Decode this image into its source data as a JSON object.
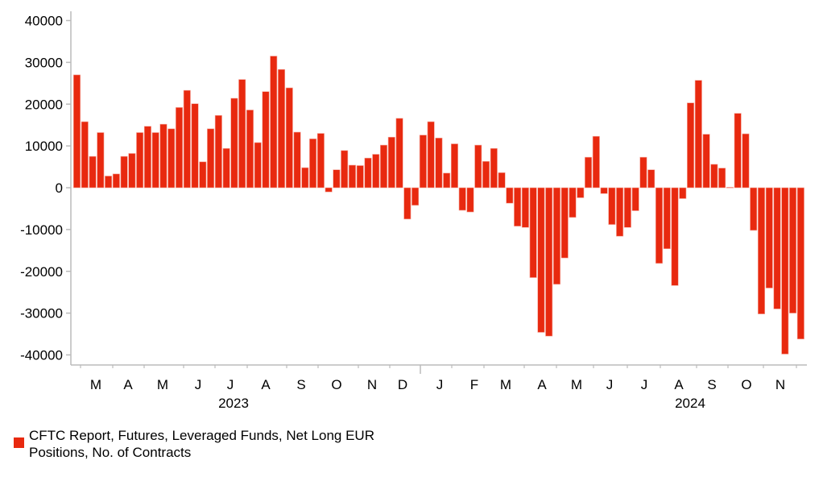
{
  "chart_data": {
    "type": "bar",
    "title": "",
    "xlabel": "",
    "ylabel": "",
    "ylim": [
      -40000,
      40000
    ],
    "yticks": [
      "40000",
      "30000",
      "20000",
      "10000",
      "0",
      "-10000",
      "-20000",
      "-30000",
      "-40000"
    ],
    "ytick_values": [
      40000,
      30000,
      20000,
      10000,
      0,
      -10000,
      -20000,
      -30000,
      -40000
    ],
    "month_labels": [
      "M",
      "A",
      "M",
      "J",
      "J",
      "A",
      "S",
      "O",
      "N",
      "D",
      "J",
      "F",
      "M",
      "A",
      "M",
      "J",
      "J",
      "A",
      "S",
      "O",
      "N"
    ],
    "year_labels": [
      "2023",
      "2024"
    ],
    "color": "#e8290f",
    "series": [
      {
        "name": "CFTC Report, Futures, Leveraged Funds, Net Long EUR Positions, No. of Contracts",
        "values": [
          27000,
          15800,
          7500,
          13200,
          2800,
          3300,
          7500,
          8200,
          13200,
          14700,
          13200,
          15200,
          14100,
          19200,
          23300,
          20100,
          6200,
          14100,
          17300,
          9400,
          21400,
          25900,
          18600,
          10800,
          23000,
          31500,
          28300,
          23900,
          13300,
          4800,
          11700,
          13000,
          -1000,
          4300,
          8900,
          5400,
          5300,
          7100,
          8000,
          10200,
          12100,
          16600,
          -7500,
          -4200,
          12600,
          15800,
          11900,
          3500,
          10500,
          -5400,
          -5800,
          10200,
          6300,
          9400,
          3600,
          -3700,
          -9200,
          -9500,
          -21500,
          -34600,
          -35500,
          -23100,
          -16800,
          -7100,
          -2400,
          7300,
          12300,
          -1400,
          -8800,
          -11600,
          -9500,
          -5500,
          7300,
          4300,
          -18100,
          -14600,
          -23400,
          -2600,
          20300,
          25700,
          12800,
          5600,
          4700,
          100,
          17800,
          12900,
          -10200,
          -30200,
          -24000,
          -29000,
          -39800,
          -30000,
          -36200
        ]
      }
    ],
    "legend_position": "bottom-left",
    "grid": false
  }
}
